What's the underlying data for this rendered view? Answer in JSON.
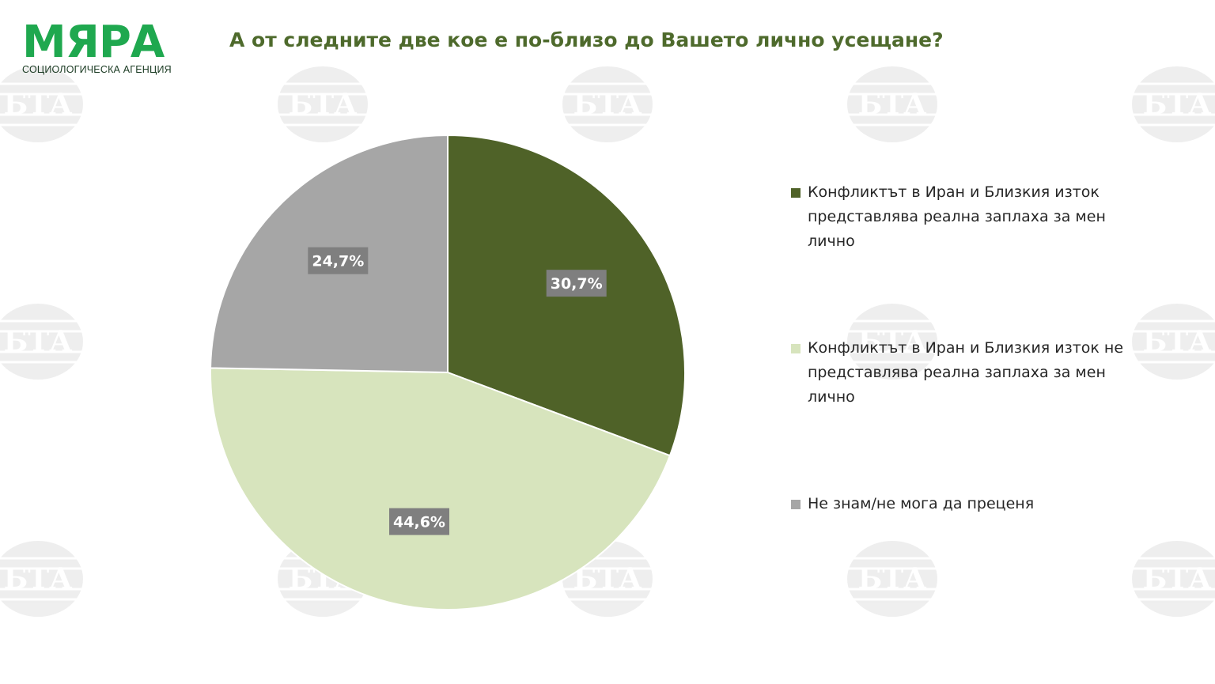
{
  "header": {
    "logo_main": "МЯРА",
    "logo_sub": "СОЦИОЛОГИЧЕСКА АГЕНЦИЯ",
    "title": "А от следните две кое е по-близо до Вашето лично усещане?"
  },
  "watermark": {
    "text": "БТА"
  },
  "colors": {
    "brand": "#1fa84f",
    "title": "#4e6a2c",
    "slice_1": "#4f6228",
    "slice_2": "#d7e4bd",
    "slice_3": "#a6a6a6",
    "data_label_bg": "#7f7f7f"
  },
  "chart_data": {
    "type": "pie",
    "title": "А от следните две кое е по-близо до Вашето лично усещане?",
    "categories": [
      "Конфликтът в Иран и Близкия изток представлява реална заплаха за мен лично",
      "Конфликтът в Иран и Близкия изток не представлява реална заплаха за мен лично",
      "Не знам/не мога да преценя"
    ],
    "values": [
      30.7,
      44.6,
      24.7
    ],
    "data_labels": [
      "30,7%",
      "44,6%",
      "24,7%"
    ],
    "unit": "%",
    "legend_position": "right",
    "start_angle": "12 o'clock, clockwise"
  }
}
